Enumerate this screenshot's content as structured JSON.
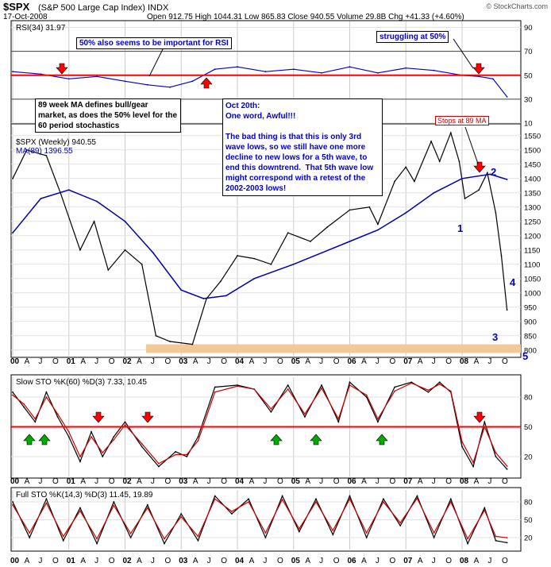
{
  "header": {
    "symbol": "$SPX",
    "description": "(S&P 500 Large Cap Index) INDX",
    "date": "17-Oct-2008",
    "quote": "Open 912.75   High 1044.31   Low 865.83   Close 940.55   Volume 29.8B   Chg +41.33 (+4.60%)",
    "brand": "© StockCharts.com"
  },
  "annotations": {
    "rsi_note": "50% also seems to be important for RSI",
    "struggling": "struggling at 50%",
    "ma_note": "89 week MA defines bull/gear market, as does the 50% level for the 60 period stochastics",
    "oct20": "Oct 20th:\nOne word, Awful!!!\n\nThe bad thing is that this is only 3rd wave lows, so we still have one more decline to new lows for a 5th wave, to end this downtrend.  That 5th wave low might correspond with a retest of the 2002-2003 lows!",
    "stops": "Stops at 89 MA"
  },
  "colors": {
    "price": "#000000",
    "down_price": "#cc0000",
    "ma": "#0000aa",
    "rsi": "#0000cc",
    "ref_line": "#ff0000",
    "stoch_k": "#000000",
    "stoch_d": "#cc0000",
    "support_band": "#f4c896",
    "up_arrow": "#00aa00",
    "down_arrow": "#ff0000",
    "wave_label": "#0000cc"
  },
  "chart_data": [
    {
      "type": "line",
      "panel": "rsi",
      "title": "RSI(34) 31.97",
      "y_ticks": [
        10,
        30,
        50,
        70,
        90
      ],
      "ylim": [
        10,
        95
      ],
      "reference_lines": [
        30,
        50,
        70
      ],
      "series": [
        {
          "name": "RSI(34)",
          "x": [
            2000.0,
            2000.5,
            2001.0,
            2001.5,
            2002.0,
            2002.4,
            2002.8,
            2003.2,
            2003.6,
            2004.0,
            2004.5,
            2005.0,
            2005.5,
            2006.0,
            2006.5,
            2007.0,
            2007.5,
            2008.0,
            2008.3,
            2008.55,
            2008.8
          ],
          "values": [
            53,
            51,
            47,
            49,
            45,
            42,
            40,
            45,
            55,
            57,
            53,
            55,
            52,
            57,
            52,
            56,
            54,
            50,
            49,
            47,
            31.97
          ]
        }
      ]
    },
    {
      "type": "line",
      "panel": "price",
      "title": "$SPX (Weekly) 940.55",
      "y_ticks": [
        800,
        850,
        900,
        950,
        1000,
        1050,
        1100,
        1150,
        1200,
        1250,
        1300,
        1350,
        1400,
        1450,
        1500,
        1550
      ],
      "ylim": [
        780,
        1580
      ],
      "support_band": [
        790,
        820
      ],
      "series": [
        {
          "name": "$SPX (Weekly) 940.55",
          "x": [
            2000.0,
            2000.25,
            2000.6,
            2000.85,
            2001.2,
            2001.45,
            2001.7,
            2002.0,
            2002.3,
            2002.55,
            2002.8,
            2003.2,
            2003.45,
            2003.7,
            2004.0,
            2004.3,
            2004.6,
            2004.9,
            2005.3,
            2005.6,
            2006.0,
            2006.35,
            2006.5,
            2006.8,
            2007.0,
            2007.15,
            2007.45,
            2007.6,
            2007.8,
            2007.95,
            2008.05,
            2008.3,
            2008.45,
            2008.6,
            2008.7,
            2008.8
          ],
          "values": [
            1400,
            1500,
            1480,
            1350,
            1150,
            1250,
            1080,
            1150,
            1100,
            850,
            830,
            820,
            980,
            1040,
            1130,
            1120,
            1100,
            1210,
            1180,
            1230,
            1290,
            1300,
            1240,
            1390,
            1440,
            1390,
            1530,
            1460,
            1560,
            1460,
            1330,
            1360,
            1420,
            1280,
            1130,
            940.55
          ]
        },
        {
          "name": "MA(89) 1396.55",
          "x": [
            2000.0,
            2000.5,
            2001.0,
            2001.5,
            2002.0,
            2002.5,
            2003.0,
            2003.4,
            2003.8,
            2004.3,
            2005.0,
            2005.5,
            2006.0,
            2006.5,
            2007.0,
            2007.5,
            2008.0,
            2008.5,
            2008.8
          ],
          "values": [
            1210,
            1330,
            1360,
            1320,
            1250,
            1140,
            1010,
            980,
            990,
            1050,
            1100,
            1140,
            1180,
            1220,
            1280,
            1350,
            1400,
            1415,
            1396.55
          ]
        }
      ],
      "wave_labels": [
        "1",
        "2",
        "3",
        "4",
        "5"
      ]
    },
    {
      "type": "line",
      "panel": "slow_sto",
      "title": "Slow STO %K(60) %D(3) 7.33, 10.45",
      "y_ticks": [
        20,
        50,
        80
      ],
      "ylim": [
        0,
        100
      ],
      "reference_lines": [
        50
      ],
      "series": [
        {
          "name": "%K(60)",
          "x": [
            2000.0,
            2000.2,
            2000.4,
            2000.6,
            2000.8,
            2001.0,
            2001.2,
            2001.4,
            2001.6,
            2001.8,
            2002.0,
            2002.3,
            2002.6,
            2002.9,
            2003.1,
            2003.3,
            2003.6,
            2004.0,
            2004.3,
            2004.6,
            2004.9,
            2005.2,
            2005.5,
            2005.8,
            2006.0,
            2006.3,
            2006.5,
            2006.8,
            2007.1,
            2007.4,
            2007.6,
            2007.8,
            2008.0,
            2008.2,
            2008.4,
            2008.6,
            2008.8
          ],
          "values": [
            85,
            70,
            55,
            85,
            60,
            40,
            15,
            45,
            20,
            40,
            55,
            30,
            10,
            25,
            20,
            40,
            90,
            92,
            88,
            65,
            92,
            60,
            92,
            55,
            95,
            80,
            55,
            90,
            95,
            85,
            95,
            85,
            30,
            10,
            55,
            20,
            7.33
          ]
        },
        {
          "name": "%D(3)",
          "x": [
            2000.0,
            2000.2,
            2000.4,
            2000.6,
            2000.8,
            2001.0,
            2001.2,
            2001.4,
            2001.6,
            2001.8,
            2002.0,
            2002.3,
            2002.6,
            2002.9,
            2003.1,
            2003.3,
            2003.6,
            2004.0,
            2004.3,
            2004.6,
            2004.9,
            2005.2,
            2005.5,
            2005.8,
            2006.0,
            2006.3,
            2006.5,
            2006.8,
            2007.1,
            2007.4,
            2007.6,
            2007.8,
            2008.0,
            2008.2,
            2008.4,
            2008.6,
            2008.8
          ],
          "values": [
            82,
            73,
            58,
            80,
            63,
            45,
            20,
            40,
            24,
            37,
            52,
            33,
            13,
            22,
            22,
            36,
            85,
            91,
            88,
            68,
            88,
            63,
            89,
            58,
            92,
            82,
            58,
            86,
            94,
            87,
            93,
            86,
            35,
            14,
            50,
            24,
            10.45
          ]
        }
      ],
      "arrows_up_count": 5,
      "arrows_down_count": 3
    },
    {
      "type": "line",
      "panel": "full_sto",
      "title": "Full STO %K(14,3) %D(3) 11.45, 19.89",
      "y_ticks": [
        20,
        50,
        80
      ],
      "ylim": [
        0,
        100
      ],
      "series": [
        {
          "name": "%K(14,3)",
          "x": [
            2000.0,
            2000.3,
            2000.6,
            2000.9,
            2001.2,
            2001.5,
            2001.8,
            2002.1,
            2002.4,
            2002.7,
            2003.0,
            2003.3,
            2003.6,
            2003.9,
            2004.2,
            2004.5,
            2004.8,
            2005.1,
            2005.4,
            2005.7,
            2006.0,
            2006.3,
            2006.6,
            2006.9,
            2007.2,
            2007.5,
            2007.8,
            2008.1,
            2008.4,
            2008.6,
            2008.8
          ],
          "values": [
            80,
            20,
            85,
            15,
            70,
            10,
            80,
            20,
            75,
            10,
            60,
            15,
            90,
            60,
            85,
            20,
            90,
            30,
            85,
            25,
            90,
            20,
            85,
            40,
            90,
            20,
            85,
            10,
            70,
            15,
            11.45
          ]
        },
        {
          "name": "%D(3)",
          "x": [
            2000.0,
            2000.3,
            2000.6,
            2000.9,
            2001.2,
            2001.5,
            2001.8,
            2002.1,
            2002.4,
            2002.7,
            2003.0,
            2003.3,
            2003.6,
            2003.9,
            2004.2,
            2004.5,
            2004.8,
            2005.1,
            2005.4,
            2005.7,
            2006.0,
            2006.3,
            2006.6,
            2006.9,
            2007.2,
            2007.5,
            2007.8,
            2008.1,
            2008.4,
            2008.6,
            2008.8
          ],
          "values": [
            75,
            28,
            78,
            22,
            65,
            18,
            74,
            27,
            70,
            18,
            55,
            22,
            85,
            64,
            80,
            28,
            84,
            35,
            80,
            32,
            85,
            28,
            80,
            45,
            86,
            28,
            80,
            18,
            66,
            22,
            19.89
          ]
        }
      ]
    }
  ],
  "x_axis": {
    "labels": [
      "00",
      "A",
      "J",
      "O",
      "01",
      "A",
      "J",
      "O",
      "02",
      "A",
      "J",
      "O",
      "03",
      "A",
      "J",
      "O",
      "04",
      "A",
      "J",
      "O",
      "05",
      "A",
      "J",
      "O",
      "06",
      "A",
      "J",
      "O",
      "07",
      "A",
      "J",
      "O",
      "08",
      "A",
      "J",
      "O"
    ]
  }
}
